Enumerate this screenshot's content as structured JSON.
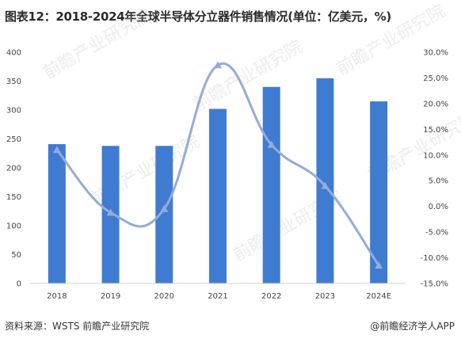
{
  "title": "图表12：2018-2024年全球半导体分立器件销售情况(单位：亿美元，%)",
  "source": "资料来源：WSTS 前瞻产业研究院",
  "brand": "@前瞻经济学人APP",
  "watermark": "前瞻产业研究院",
  "colors": {
    "bar": "#3f7bd1",
    "line": "#93acd9"
  },
  "chart_data": {
    "type": "bar",
    "title": "图表12：2018-2024年全球半导体分立器件销售情况(单位：亿美元，%)",
    "categories": [
      "2018",
      "2019",
      "2020",
      "2021",
      "2022",
      "2023",
      "2024E"
    ],
    "series": [
      {
        "axis": "left",
        "chart": "bar",
        "values": [
          241,
          238,
          238,
          302,
          340,
          355,
          315
        ]
      },
      {
        "axis": "right",
        "chart": "line",
        "smooth": true,
        "marker": "triangle",
        "values": [
          11.0,
          -1.2,
          -0.5,
          27.5,
          12.0,
          4.0,
          -11.5
        ]
      }
    ],
    "ylim_left": [
      0,
      400
    ],
    "yticks_left": [
      "0",
      "50",
      "100",
      "150",
      "200",
      "250",
      "300",
      "350",
      "400"
    ],
    "ylim_right": [
      -15,
      30
    ],
    "yticks_right": [
      "-15.0%",
      "-10.0%",
      "-5.0%",
      "0.0%",
      "5.0%",
      "10.0%",
      "15.0%",
      "20.0%",
      "25.0%",
      "30.0%"
    ],
    "grid": false,
    "legend": "none"
  }
}
